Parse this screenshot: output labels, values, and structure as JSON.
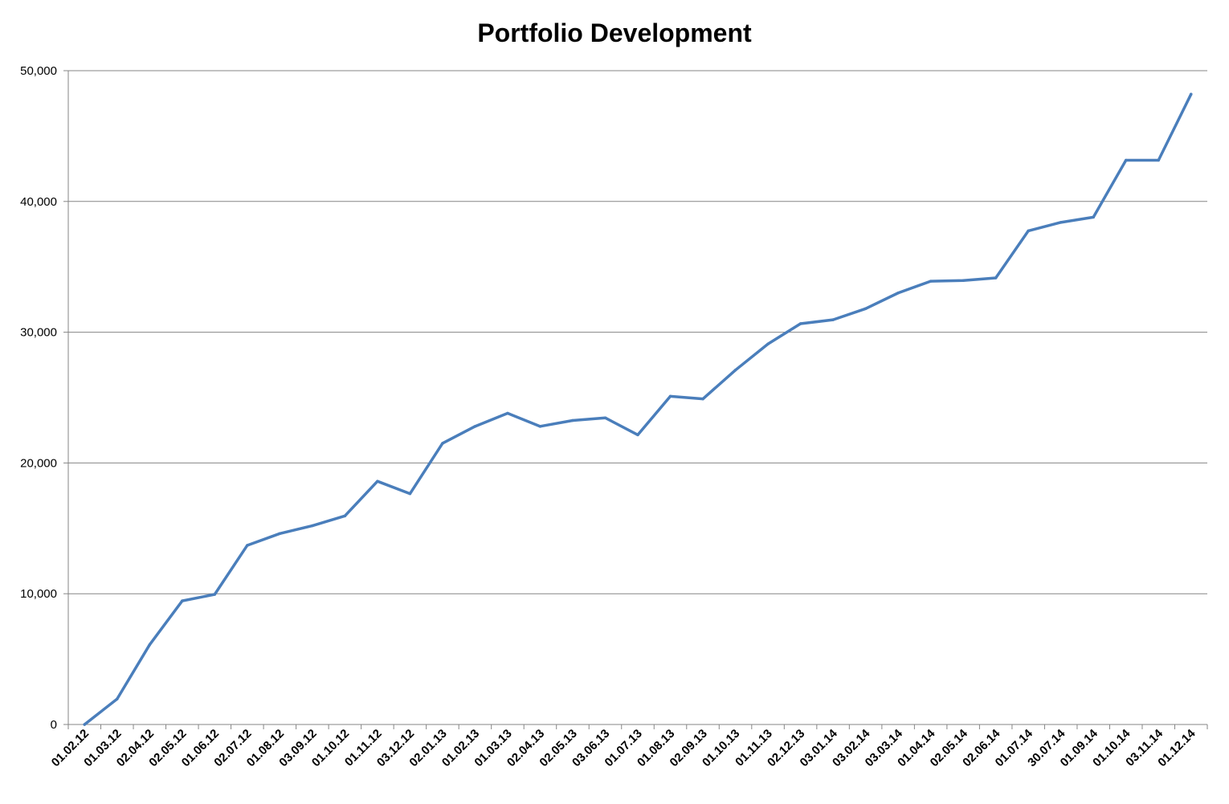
{
  "chart_data": {
    "type": "line",
    "title": "Portfolio Development",
    "xlabel": "",
    "ylabel": "",
    "ylim": [
      0,
      50000
    ],
    "yticks": [
      "0",
      "10,000",
      "20,000",
      "30,000",
      "40,000",
      "50,000"
    ],
    "grid": true,
    "legend": "none",
    "categories": [
      "01.02.12",
      "01.03.12",
      "02.04.12",
      "02.05.12",
      "01.06.12",
      "02.07.12",
      "01.08.12",
      "03.09.12",
      "01.10.12",
      "01.11.12",
      "03.12.12",
      "02.01.13",
      "01.02.13",
      "01.03.13",
      "02.04.13",
      "02.05.13",
      "03.06.13",
      "01.07.13",
      "01.08.13",
      "02.09.13",
      "01.10.13",
      "01.11.13",
      "02.12.13",
      "03.01.14",
      "03.02.14",
      "03.03.14",
      "01.04.14",
      "02.05.14",
      "02.06.14",
      "01.07.14",
      "30.07.14",
      "01.09.14",
      "01.10.14",
      "03.11.14",
      "01.12.14"
    ],
    "series": [
      {
        "color": "#4a7ebb",
        "values": [
          0,
          1950,
          6100,
          9450,
          9950,
          13700,
          14600,
          15200,
          15950,
          18600,
          17650,
          21500,
          22800,
          23800,
          22800,
          23250,
          23450,
          22150,
          25100,
          24900,
          27100,
          29100,
          30650,
          30950,
          31800,
          33000,
          33900,
          33950,
          34150,
          37750,
          38400,
          38800,
          43150,
          43150,
          48200
        ]
      }
    ]
  }
}
